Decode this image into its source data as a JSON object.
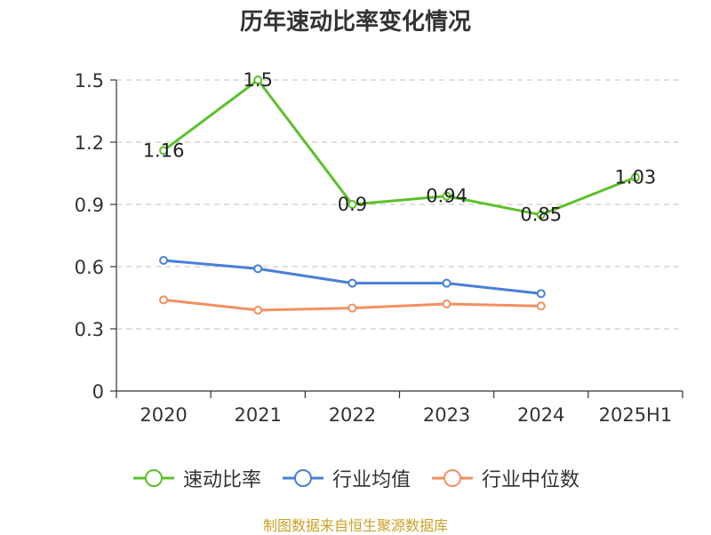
{
  "chart_data": {
    "type": "line",
    "title": "历年速动比率变化情况",
    "categories": [
      "2020",
      "2021",
      "2022",
      "2023",
      "2024",
      "2025H1"
    ],
    "ylim": [
      0,
      1.5
    ],
    "yticks": [
      "0",
      "0.3",
      "0.6",
      "0.9",
      "1.2",
      "1.5"
    ],
    "ytick_values": [
      0,
      0.3,
      0.6,
      0.9,
      1.2,
      1.5
    ],
    "grid": true,
    "legend_position": "bottom",
    "series": [
      {
        "name": "速动比率",
        "color": "#5cc02a",
        "values": [
          1.16,
          1.5,
          0.9,
          0.94,
          0.85,
          1.03
        ],
        "labels": [
          "1.16",
          "1.5",
          "0.9",
          "0.94",
          "0.85",
          "1.03"
        ],
        "show_labels": true
      },
      {
        "name": "行业均值",
        "color": "#4a7fd8",
        "values": [
          0.63,
          0.59,
          0.52,
          0.52,
          0.47,
          null
        ],
        "show_labels": false
      },
      {
        "name": "行业中位数",
        "color": "#f39060",
        "values": [
          0.44,
          0.39,
          0.4,
          0.42,
          0.41,
          null
        ],
        "show_labels": false
      }
    ]
  },
  "footer": {
    "source": "制图数据来自恒生聚源数据库"
  }
}
